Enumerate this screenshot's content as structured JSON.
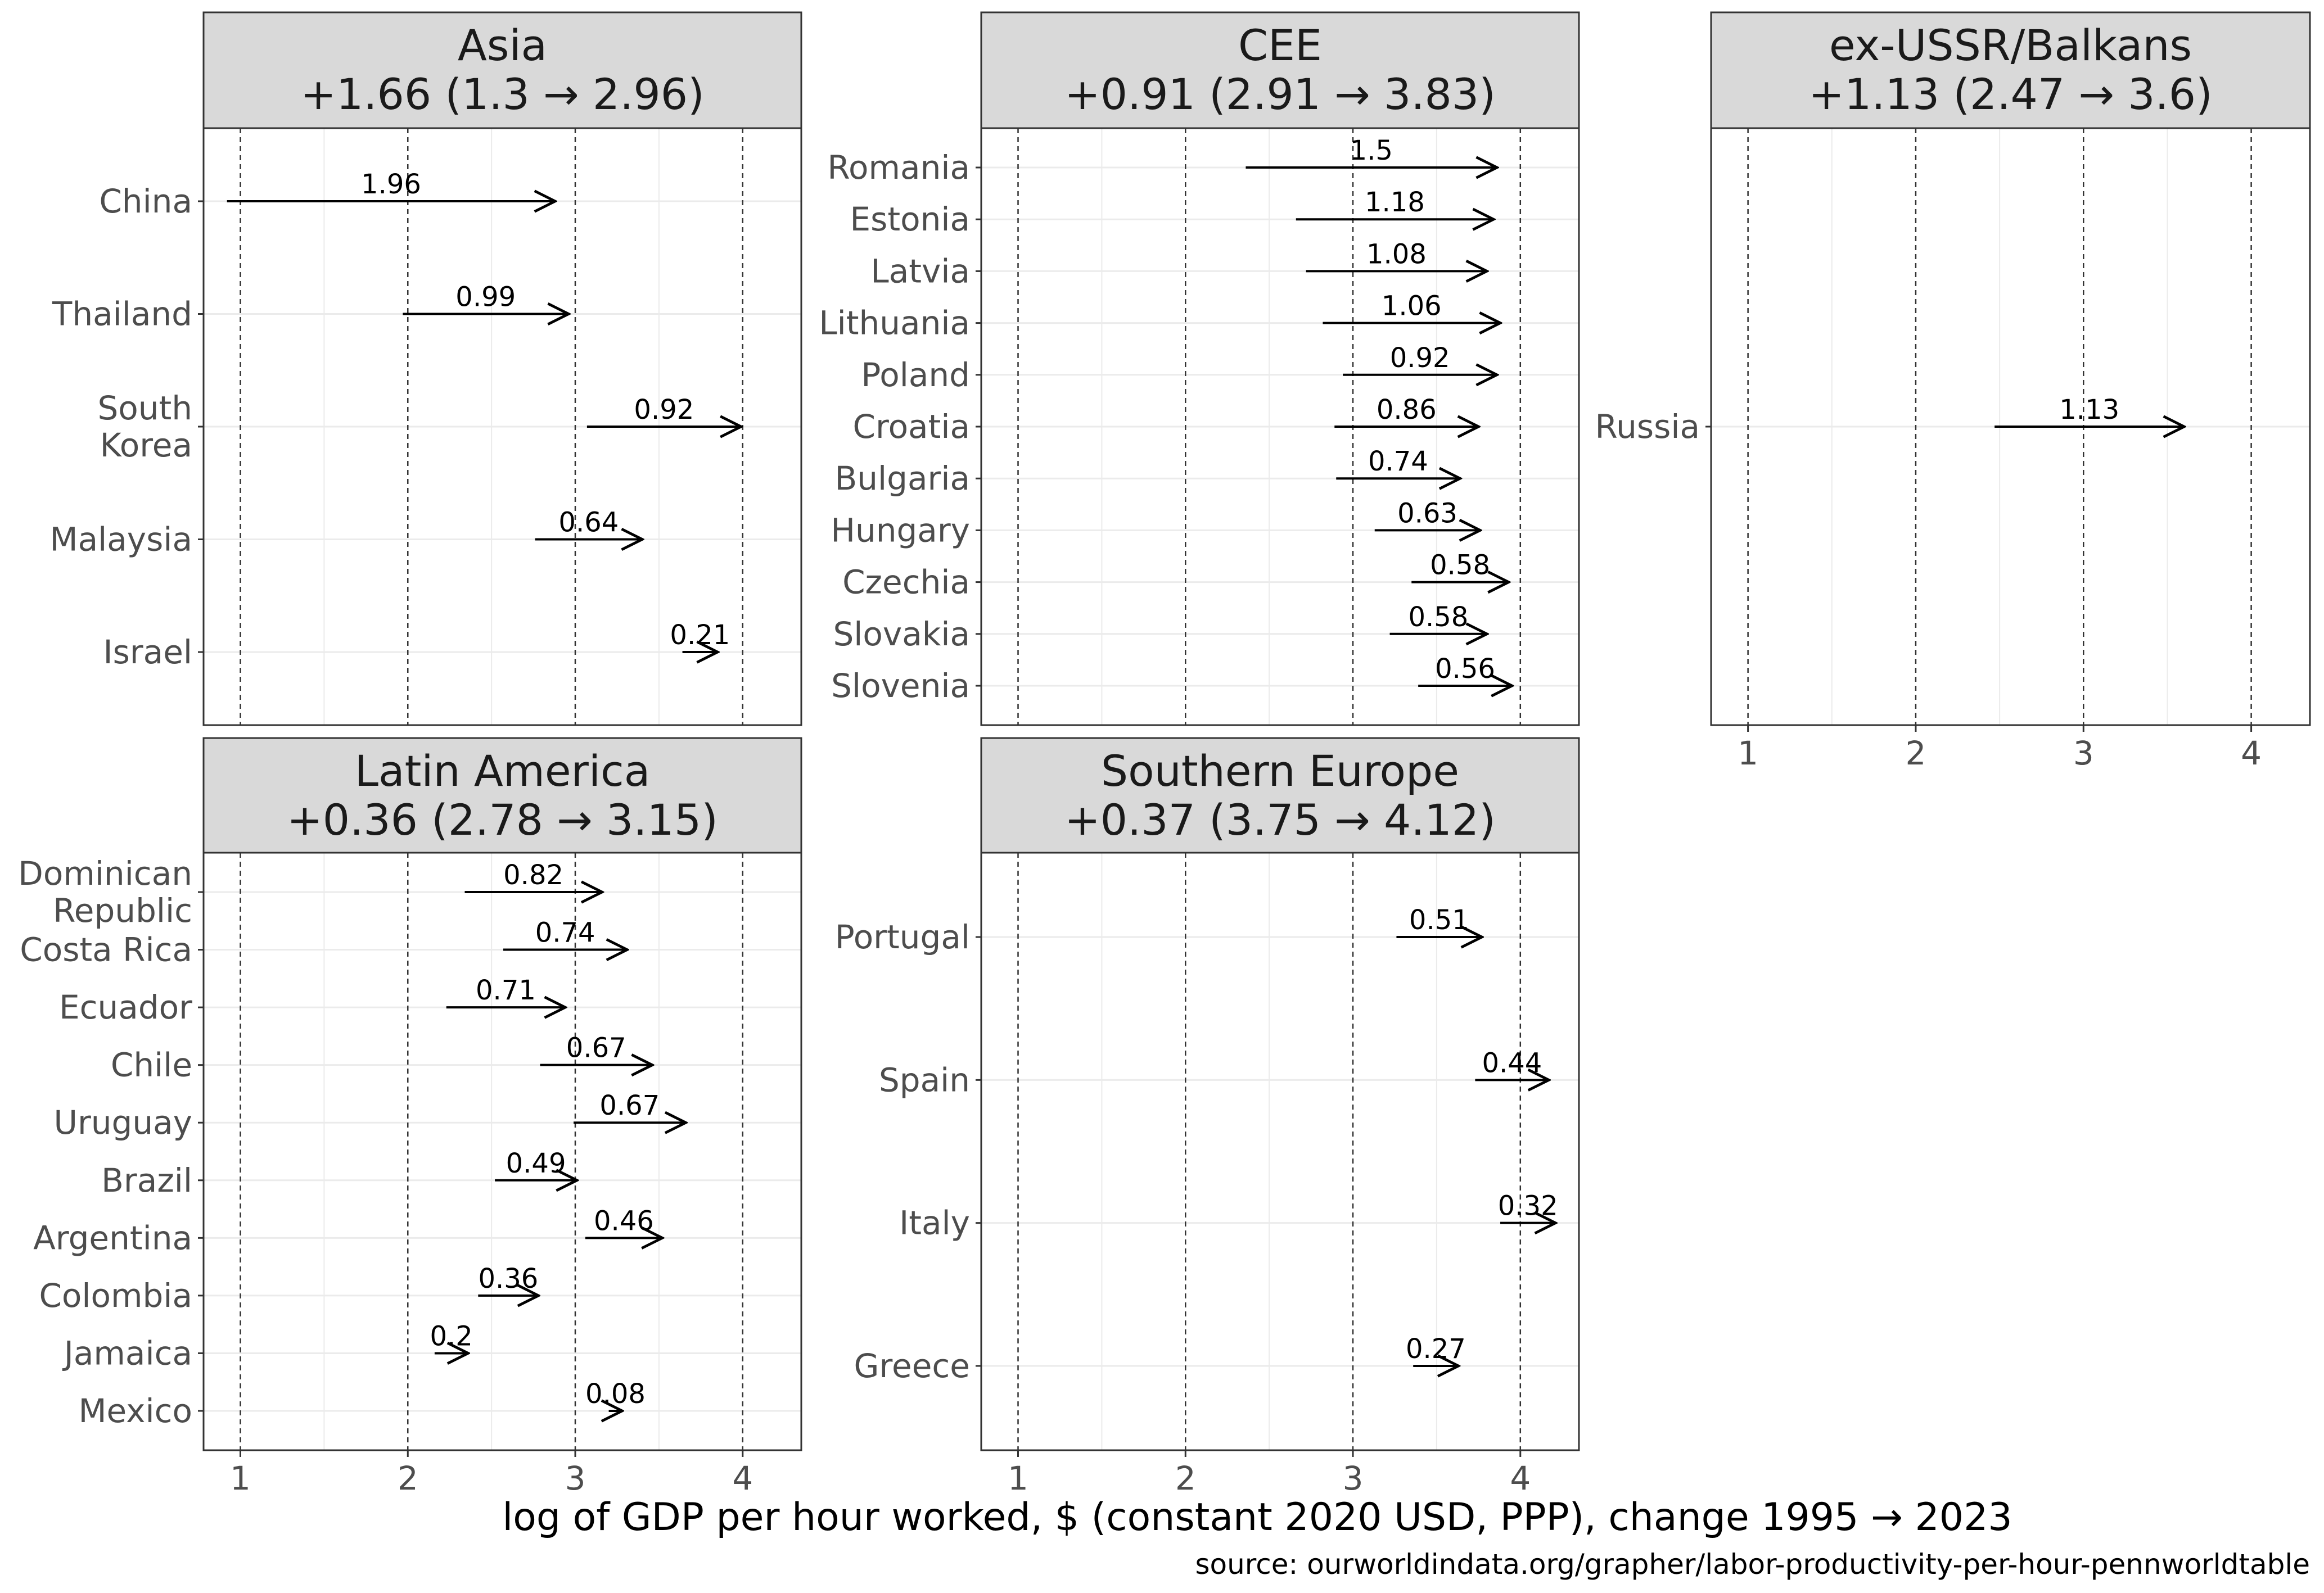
{
  "chart_data": {
    "type": "arrow",
    "xlabel": "log of GDP per hour worked, $ (constant 2020 USD, PPP), change 1995 → 2023",
    "caption": "source: ourworldindata.org/grapher/labor-productivity-per-hour-pennworldtable",
    "xlim": [
      0.78,
      4.35
    ],
    "xticks": [
      1,
      2,
      3,
      4
    ],
    "tick_labels": [
      "1",
      "2",
      "3",
      "4"
    ],
    "panels": [
      {
        "name": "Asia",
        "title": "Asia",
        "subtitle": "+1.66 (1.3 → 2.96)",
        "rows": [
          {
            "country": "China",
            "from": 0.92,
            "to": 2.88,
            "delta": "1.96"
          },
          {
            "country": "Thailand",
            "from": 1.97,
            "to": 2.96,
            "delta": "0.99"
          },
          {
            "country": "South Korea",
            "country_lines": [
              "South",
              "Korea"
            ],
            "from": 3.07,
            "to": 3.99,
            "delta": "0.92"
          },
          {
            "country": "Malaysia",
            "from": 2.76,
            "to": 3.4,
            "delta": "0.64"
          },
          {
            "country": "Israel",
            "from": 3.64,
            "to": 3.85,
            "delta": "0.21"
          }
        ]
      },
      {
        "name": "CEE",
        "title": "CEE",
        "subtitle": "+0.91 (2.91 → 3.83)",
        "rows": [
          {
            "country": "Romania",
            "from": 2.36,
            "to": 3.86,
            "delta": "1.5"
          },
          {
            "country": "Estonia",
            "from": 2.66,
            "to": 3.84,
            "delta": "1.18"
          },
          {
            "country": "Latvia",
            "from": 2.72,
            "to": 3.8,
            "delta": "1.08"
          },
          {
            "country": "Lithuania",
            "from": 2.82,
            "to": 3.88,
            "delta": "1.06"
          },
          {
            "country": "Poland",
            "from": 2.94,
            "to": 3.86,
            "delta": "0.92"
          },
          {
            "country": "Croatia",
            "from": 2.89,
            "to": 3.75,
            "delta": "0.86"
          },
          {
            "country": "Bulgaria",
            "from": 2.9,
            "to": 3.64,
            "delta": "0.74"
          },
          {
            "country": "Hungary",
            "from": 3.13,
            "to": 3.76,
            "delta": "0.63"
          },
          {
            "country": "Czechia",
            "from": 3.35,
            "to": 3.93,
            "delta": "0.58"
          },
          {
            "country": "Slovakia",
            "from": 3.22,
            "to": 3.8,
            "delta": "0.58"
          },
          {
            "country": "Slovenia",
            "from": 3.39,
            "to": 3.95,
            "delta": "0.56"
          }
        ]
      },
      {
        "name": "ex-USSR/Balkans",
        "title": "ex-USSR/Balkans",
        "subtitle": "+1.13 (2.47 → 3.6)",
        "rows": [
          {
            "country": "Russia",
            "from": 2.47,
            "to": 3.6,
            "delta": "1.13"
          }
        ]
      },
      {
        "name": "Latin America",
        "title": "Latin America",
        "subtitle": "+0.36 (2.78 → 3.15)",
        "rows": [
          {
            "country": "Dominican Republic",
            "country_lines": [
              "Dominican",
              "Republic"
            ],
            "from": 2.34,
            "to": 3.16,
            "delta": "0.82"
          },
          {
            "country": "Costa Rica",
            "from": 2.57,
            "to": 3.31,
            "delta": "0.74"
          },
          {
            "country": "Ecuador",
            "from": 2.23,
            "to": 2.94,
            "delta": "0.71"
          },
          {
            "country": "Chile",
            "from": 2.79,
            "to": 3.46,
            "delta": "0.67"
          },
          {
            "country": "Uruguay",
            "from": 2.99,
            "to": 3.66,
            "delta": "0.67"
          },
          {
            "country": "Brazil",
            "from": 2.52,
            "to": 3.01,
            "delta": "0.49"
          },
          {
            "country": "Argentina",
            "from": 3.06,
            "to": 3.52,
            "delta": "0.46"
          },
          {
            "country": "Colombia",
            "from": 2.42,
            "to": 2.78,
            "delta": "0.36"
          },
          {
            "country": "Jamaica",
            "from": 2.16,
            "to": 2.36,
            "delta": "0.2"
          },
          {
            "country": "Mexico",
            "from": 3.2,
            "to": 3.28,
            "delta": "0.08"
          }
        ]
      },
      {
        "name": "Southern Europe",
        "title": "Southern Europe",
        "subtitle": "+0.37 (3.75 → 4.12)",
        "rows": [
          {
            "country": "Portugal",
            "from": 3.26,
            "to": 3.77,
            "delta": "0.51"
          },
          {
            "country": "Spain",
            "from": 3.73,
            "to": 4.17,
            "delta": "0.44"
          },
          {
            "country": "Italy",
            "from": 3.88,
            "to": 4.21,
            "delta": "0.32"
          },
          {
            "country": "Greece",
            "from": 3.36,
            "to": 3.63,
            "delta": "0.27"
          }
        ]
      }
    ]
  },
  "colors": {
    "strip_fill": "#d9d9d9",
    "border": "#333333",
    "grid_minor": "#ebebeb",
    "grid_major": "#ebebeb",
    "vline": "#333333",
    "arrow": "#000000",
    "axis_text": "#4d4d4d"
  }
}
